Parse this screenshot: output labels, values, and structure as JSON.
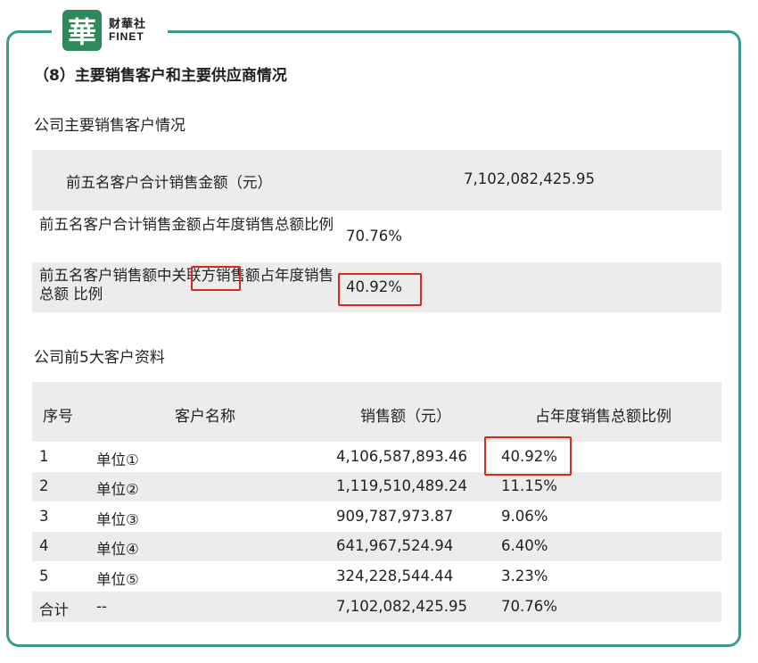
{
  "brand": {
    "badge": "華",
    "name_cn": "财華社",
    "name_en": "FINET"
  },
  "section_title": "（8）主要销售客户和主要供应商情况",
  "summary": {
    "title": "公司主要销售客户情况",
    "rows": [
      {
        "label": "前五名客户合计销售金额（元）",
        "value": "7,102,082,425.95"
      },
      {
        "label": "前五名客户合计销售金额占年度销售总额比例",
        "value": "70.76%"
      },
      {
        "label_before": "前五名客户销售额中",
        "label_highlight": "关联方",
        "label_after": "销售额占年度销售总额 比例",
        "value": "40.92%"
      }
    ]
  },
  "customers": {
    "title": "公司前5大客户资料",
    "headers": [
      "序号",
      "客户名称",
      "销售额（元）",
      "占年度销售总额比例"
    ],
    "rows": [
      {
        "no": "1",
        "name": "单位①",
        "amount": "4,106,587,893.46",
        "ratio": "40.92%"
      },
      {
        "no": "2",
        "name": "单位②",
        "amount": "1,119,510,489.24",
        "ratio": "11.15%"
      },
      {
        "no": "3",
        "name": "单位③",
        "amount": "909,787,973.87",
        "ratio": "9.06%"
      },
      {
        "no": "4",
        "name": "单位④",
        "amount": "641,967,524.94",
        "ratio": "6.40%"
      },
      {
        "no": "5",
        "name": "单位⑤",
        "amount": "324,228,544.44",
        "ratio": "3.23%"
      },
      {
        "no": "合计",
        "name": "--",
        "amount": "7,102,082,425.95",
        "ratio": "70.76%"
      }
    ]
  },
  "colors": {
    "frame": "#3d9b8d",
    "highlight_box": "#d8281f",
    "row_fill": "#ececec",
    "logo": "#2e8a5a"
  }
}
